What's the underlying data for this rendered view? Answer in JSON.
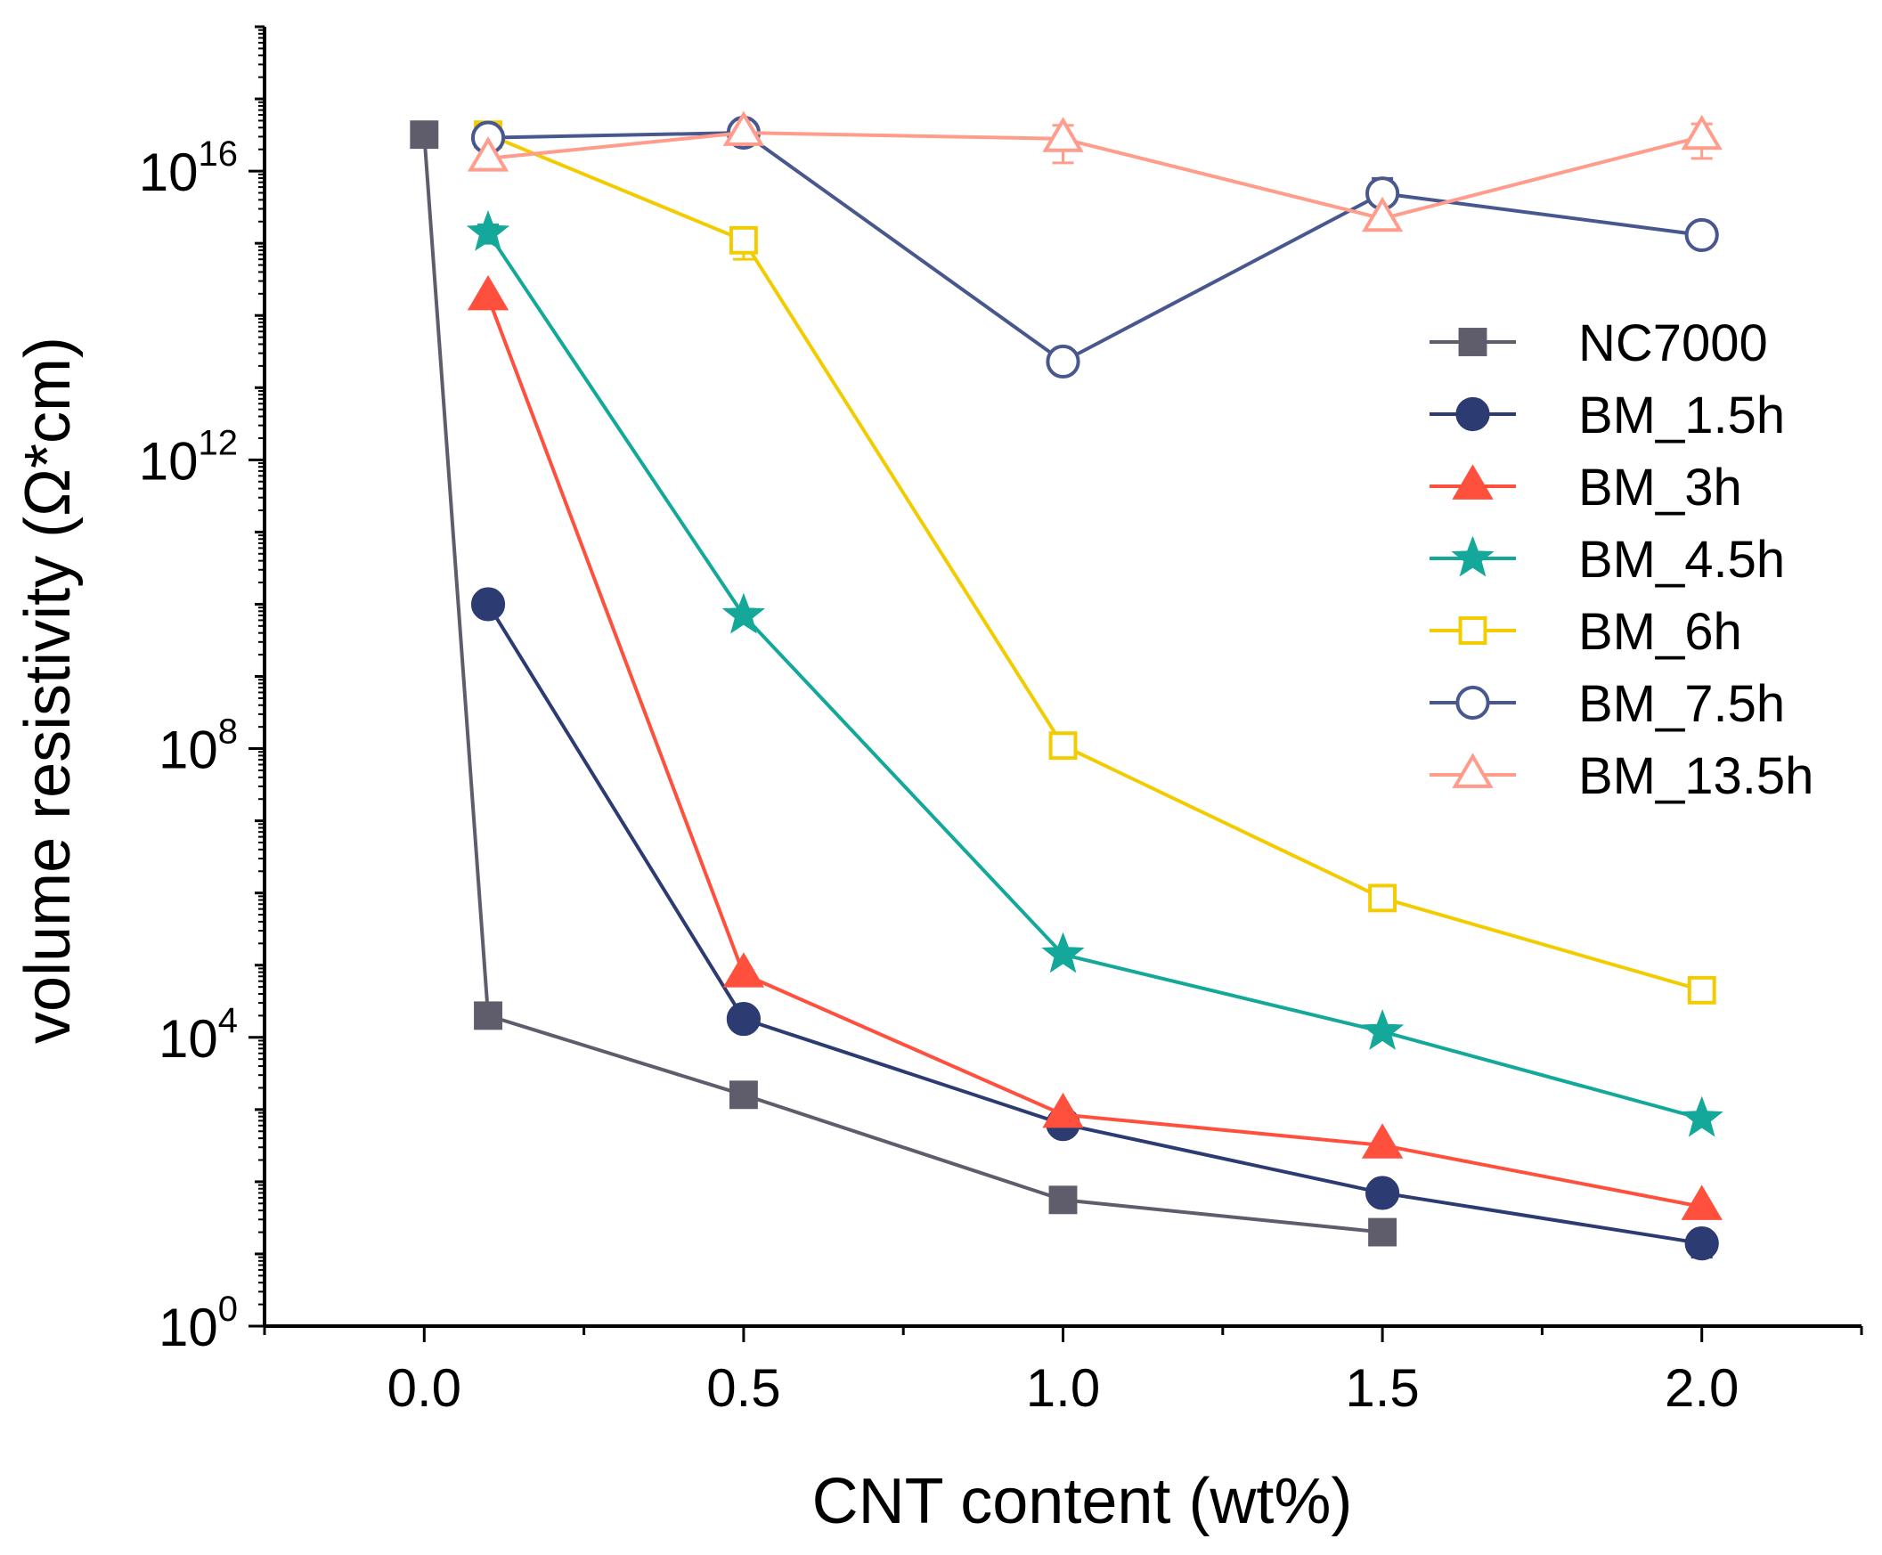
{
  "chart_data": {
    "type": "line",
    "title": "",
    "xlabel": "CNT content (wt%)",
    "ylabel": "volume resistivity (Ω*cm)",
    "xlim": [
      -0.25,
      2.25
    ],
    "ylim_log10": [
      0,
      18
    ],
    "yscale": "log",
    "x_ticks": [
      {
        "value": 0.0,
        "label": "0.0"
      },
      {
        "value": 0.5,
        "label": "0.5"
      },
      {
        "value": 1.0,
        "label": "1.0"
      },
      {
        "value": 1.5,
        "label": "1.5"
      },
      {
        "value": 2.0,
        "label": "2.0"
      }
    ],
    "y_ticks": [
      {
        "exp": 0,
        "base": "10",
        "sup": "0"
      },
      {
        "exp": 4,
        "base": "10",
        "sup": "4"
      },
      {
        "exp": 8,
        "base": "10",
        "sup": "8"
      },
      {
        "exp": 12,
        "base": "10",
        "sup": "12"
      },
      {
        "exp": 16,
        "base": "10",
        "sup": "16"
      }
    ],
    "legend_position": "right",
    "series": [
      {
        "name": "NC7000",
        "color": "#5f5d6c",
        "marker": "square-filled",
        "x": [
          0.0,
          0.1,
          0.5,
          1.0,
          1.5
        ],
        "y": [
          3.2e+16,
          20000.0,
          1600.0,
          56.0,
          20.0
        ]
      },
      {
        "name": "BM_1.5h",
        "color": "#2c3c72",
        "marker": "circle-filled",
        "x": [
          0.1,
          0.5,
          1.0,
          1.5,
          2.0
        ],
        "y": [
          10000000000.0,
          18000.0,
          630.0,
          70.0,
          14.0
        ],
        "err": [
          1000000000.0,
          0,
          0,
          0,
          5.0
        ]
      },
      {
        "name": "BM_3h",
        "color": "#ff4f3d",
        "marker": "triangle-filled",
        "x": [
          0.1,
          0.5,
          1.0,
          1.5,
          2.0
        ],
        "y": [
          180000000000000.0,
          75000.0,
          850.0,
          320.0,
          45.0
        ]
      },
      {
        "name": "BM_4.5h",
        "color": "#14a89a",
        "marker": "star-filled",
        "x": [
          0.1,
          0.5,
          1.0,
          1.5,
          2.0
        ],
        "y": [
          1400000000000000.0,
          7000000000.0,
          140000.0,
          12000.0,
          750.0
        ],
        "err": [
          400000000000000.0,
          0,
          0,
          0,
          0
        ]
      },
      {
        "name": "BM_6h",
        "color": "#f2cc00",
        "marker": "square-open",
        "x": [
          0.1,
          0.5,
          1.0,
          1.5,
          2.0
        ],
        "y": [
          3.2e+16,
          1100000000000000.0,
          110000000.0,
          850000.0,
          45000.0
        ],
        "err": [
          0,
          500000000000000.0,
          30000000.0,
          0,
          0
        ]
      },
      {
        "name": "BM_7.5h",
        "color": "#48588f",
        "marker": "circle-open",
        "x": [
          0.1,
          0.5,
          1.0,
          1.5,
          2.0
        ],
        "y": [
          2.9e+16,
          3.4e+16,
          23000000000000.0,
          4900000000000000.0,
          1300000000000000.0
        ],
        "err": [
          0,
          0,
          0,
          3000000000000000.0,
          300000000000000.0
        ]
      },
      {
        "name": "BM_13.5h",
        "color": "#ff9c8b",
        "marker": "triangle-open",
        "x": [
          0.1,
          0.5,
          1.0,
          1.5,
          2.0
        ],
        "y": [
          1.5e+16,
          3.4e+16,
          2.8e+16,
          2200000000000000.0,
          3e+16
        ],
        "err": [
          0,
          0,
          1.5e+16,
          0,
          1.5e+16
        ]
      }
    ]
  }
}
